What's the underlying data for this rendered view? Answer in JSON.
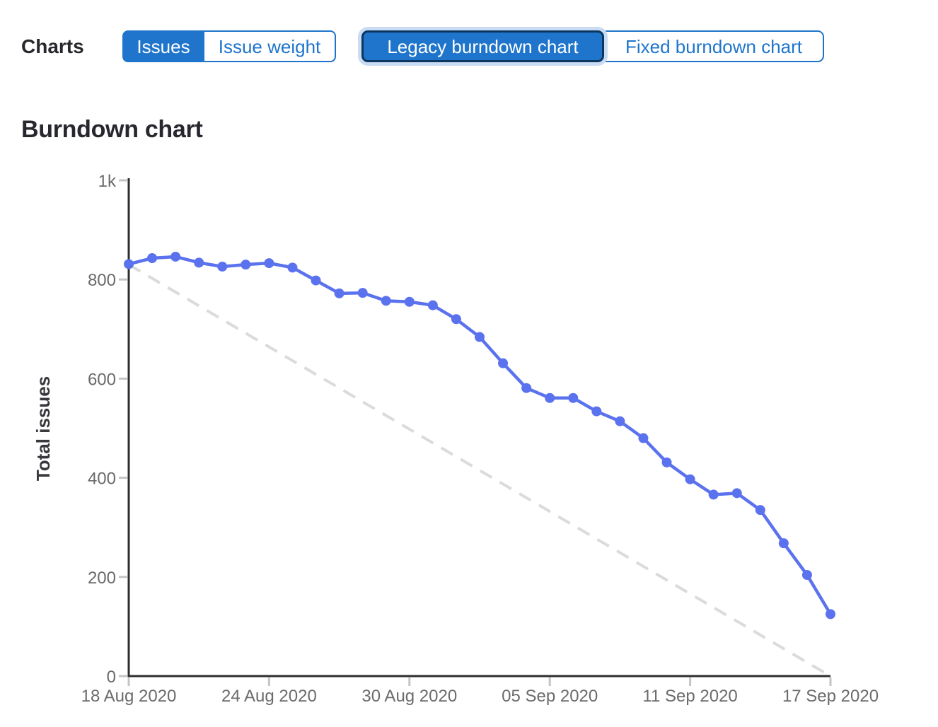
{
  "header": {
    "charts_label": "Charts",
    "metric_toggle": {
      "issues_label": "Issues",
      "issue_weight_label": "Issue weight",
      "selected": "Issues"
    },
    "chart_type_toggle": {
      "legacy_label": "Legacy burndown chart",
      "fixed_label": "Fixed burndown chart",
      "selected": "Legacy burndown chart",
      "focused": "Legacy burndown chart"
    }
  },
  "section": {
    "title": "Burndown chart"
  },
  "colors": {
    "accent_blue": "#1f75cb",
    "focus_border": "#0b3660",
    "focus_halo": "#c9dcf4",
    "series_line": "#5b72ee",
    "guideline": "#dbdbdb",
    "axis": "#2e2e2e",
    "tick": "#c4c4c4",
    "tick_text": "#6b6b6b",
    "heading_text": "#28272d",
    "axis_title": "#38383d"
  },
  "chart_data": {
    "type": "line",
    "title": "Burndown chart",
    "xlabel": "",
    "ylabel": "Total issues",
    "ylim": [
      0,
      1000
    ],
    "xlim_days": [
      0,
      30
    ],
    "x_start_date": "18 Aug 2020",
    "x_end_date": "17 Sep 2020",
    "grid": false,
    "legend": "none",
    "y_ticks": [
      {
        "value": 1000,
        "label": "1k"
      },
      {
        "value": 800,
        "label": "800"
      },
      {
        "value": 600,
        "label": "600"
      },
      {
        "value": 400,
        "label": "400"
      },
      {
        "value": 200,
        "label": "200"
      },
      {
        "value": 0,
        "label": "0"
      }
    ],
    "x_ticks": [
      {
        "day": 0,
        "label": "18 Aug 2020"
      },
      {
        "day": 6,
        "label": "24 Aug 2020"
      },
      {
        "day": 12,
        "label": "30 Aug 2020"
      },
      {
        "day": 18,
        "label": "05 Sep 2020"
      },
      {
        "day": 24,
        "label": "11 Sep 2020"
      },
      {
        "day": 30,
        "label": "17 Sep 2020"
      }
    ],
    "series": [
      {
        "name": "Total issues",
        "color": "#5b72ee",
        "marker": "circle",
        "values": [
          831,
          843,
          846,
          834,
          826,
          830,
          833,
          824,
          798,
          772,
          773,
          757,
          755,
          748,
          720,
          684,
          631,
          581,
          561,
          561,
          534,
          514,
          480,
          431,
          397,
          366,
          369,
          335,
          268,
          204,
          125
        ]
      }
    ],
    "guideline": {
      "name": "Ideal burndown",
      "style": "dashed",
      "color": "#dbdbdb",
      "from": [
        0,
        830
      ],
      "to": [
        30,
        0
      ]
    }
  }
}
